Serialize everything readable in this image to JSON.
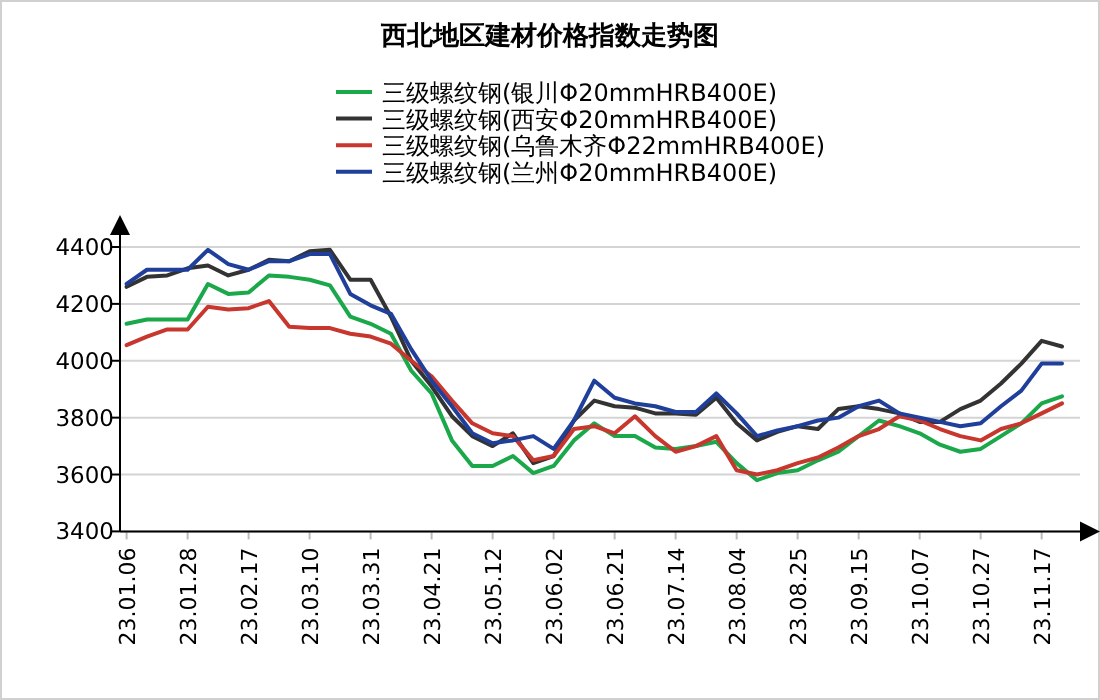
{
  "chart_data": {
    "type": "line",
    "title": "西北地区建材价格指数走势图",
    "categories": [
      "23.01.06",
      null,
      null,
      "23.01.28",
      null,
      null,
      "23.02.17",
      null,
      null,
      "23.03.10",
      null,
      null,
      "23.03.31",
      null,
      null,
      "23.04.21",
      null,
      null,
      "23.05.12",
      null,
      null,
      "23.06.02",
      null,
      null,
      "23.06.21",
      null,
      null,
      "23.07.14",
      null,
      null,
      "23.08.04",
      null,
      null,
      "23.08.25",
      null,
      null,
      "23.09.15",
      null,
      null,
      "23.10.07",
      null,
      null,
      "23.10.27",
      null,
      null,
      "23.11.17",
      null
    ],
    "series": [
      {
        "name": "三级螺纹钢(银川Φ20mmHRB400E)",
        "color": "#1aa84a",
        "values": [
          4130,
          4145,
          4145,
          4145,
          4270,
          4235,
          4240,
          4300,
          4295,
          4285,
          4265,
          4155,
          4130,
          4095,
          3965,
          3885,
          3720,
          3630,
          3630,
          3665,
          3605,
          3630,
          3720,
          3780,
          3735,
          3735,
          3695,
          3690,
          3700,
          3715,
          3640,
          3580,
          3605,
          3615,
          3650,
          3680,
          3735,
          3790,
          3770,
          3745,
          3705,
          3680,
          3690,
          3735,
          3780,
          3850,
          3875
        ]
      },
      {
        "name": "三级螺纹钢(西安Φ20mmHRB400E)",
        "color": "#333333",
        "values": [
          4260,
          4295,
          4300,
          4325,
          4335,
          4300,
          4320,
          4355,
          4350,
          4385,
          4390,
          4285,
          4285,
          4155,
          4000,
          3910,
          3805,
          3735,
          3700,
          3745,
          3640,
          3665,
          3790,
          3860,
          3840,
          3835,
          3815,
          3815,
          3810,
          3870,
          3780,
          3720,
          3750,
          3770,
          3760,
          3830,
          3840,
          3830,
          3815,
          3785,
          3785,
          3830,
          3860,
          3920,
          3990,
          4070,
          4050
        ]
      },
      {
        "name": "三级螺纹钢(乌鲁木齐Φ22mmHRB400E)",
        "color": "#c8372d",
        "values": [
          4055,
          4085,
          4110,
          4110,
          4190,
          4180,
          4185,
          4210,
          4120,
          4115,
          4115,
          4095,
          4085,
          4060,
          4000,
          3945,
          3860,
          3780,
          3745,
          3735,
          3650,
          3665,
          3760,
          3770,
          3745,
          3805,
          3735,
          3680,
          3700,
          3735,
          3615,
          3600,
          3615,
          3640,
          3660,
          3695,
          3735,
          3760,
          3805,
          3790,
          3760,
          3735,
          3720,
          3760,
          3780,
          3815,
          3850
        ]
      },
      {
        "name": "三级螺纹钢(兰州Φ20mmHRB400E)",
        "color": "#1f3f9a",
        "values": [
          4270,
          4320,
          4320,
          4320,
          4390,
          4340,
          4320,
          4350,
          4350,
          4375,
          4375,
          4235,
          4195,
          4165,
          4040,
          3930,
          3840,
          3745,
          3710,
          3720,
          3735,
          3690,
          3790,
          3930,
          3870,
          3850,
          3840,
          3820,
          3820,
          3885,
          3815,
          3735,
          3755,
          3770,
          3790,
          3800,
          3840,
          3860,
          3815,
          3800,
          3785,
          3770,
          3780,
          3840,
          3895,
          3990,
          3990
        ]
      }
    ],
    "ylim": [
      3400,
      4400
    ],
    "yticks": [
      3400,
      3600,
      3800,
      4000,
      4200,
      4400
    ],
    "grid": "y",
    "legend": "top"
  }
}
